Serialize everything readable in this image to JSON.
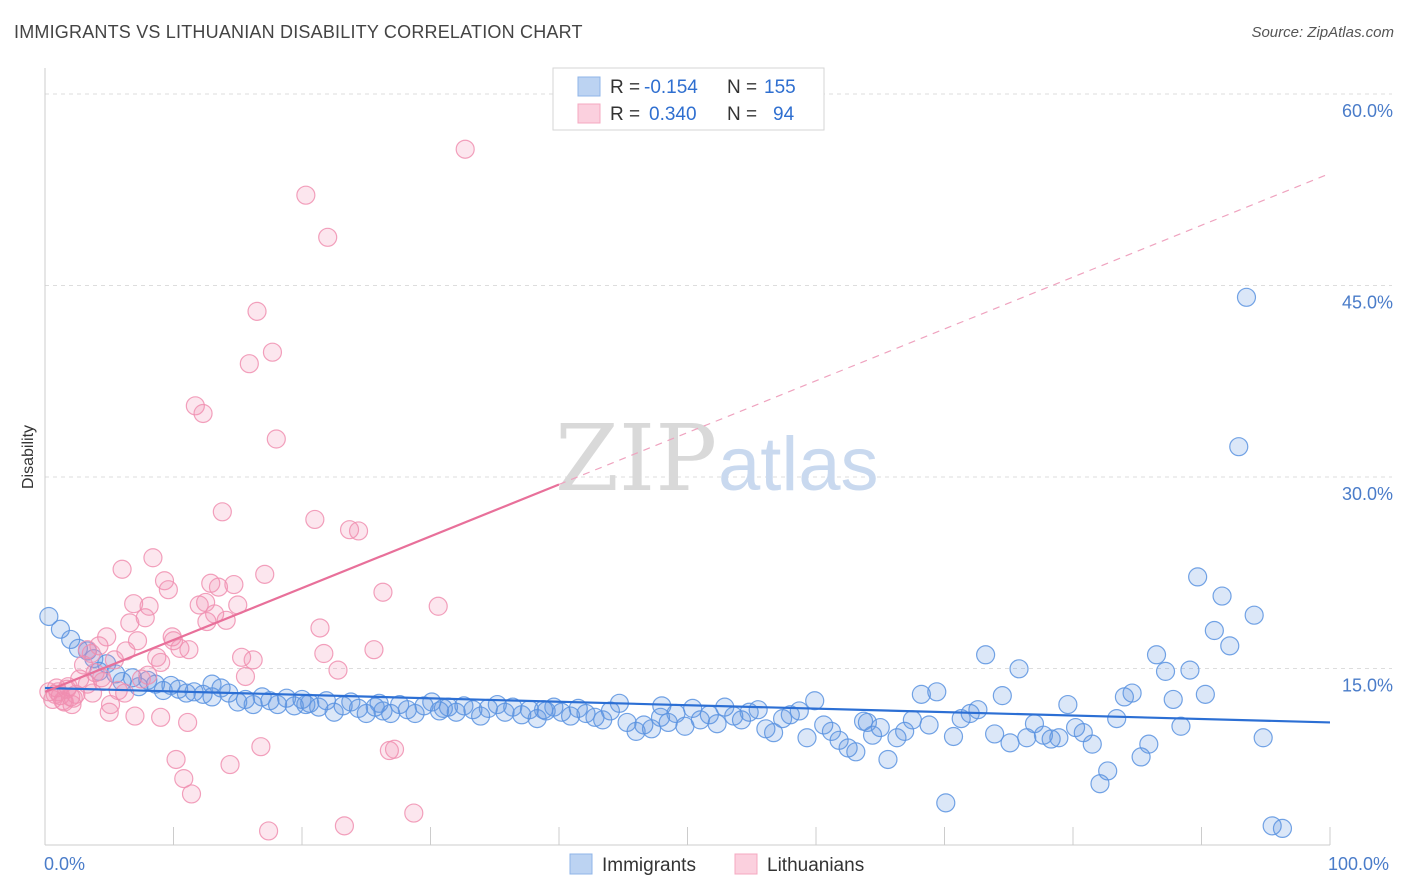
{
  "title": "IMMIGRANTS VS LITHUANIAN DISABILITY CORRELATION CHART",
  "source": "Source: ZipAtlas.com",
  "watermark": {
    "zip": "ZIP",
    "atlas": "atlas"
  },
  "chart_data": {
    "type": "scatter",
    "xlabel": "",
    "ylabel": "Disability",
    "xlim": [
      0,
      100
    ],
    "ylim": [
      0,
      60
    ],
    "x_tick_labels": [
      "0.0%",
      "100.0%"
    ],
    "y_ticks": [
      15,
      30,
      45,
      60
    ],
    "y_tick_labels": [
      "15.0%",
      "30.0%",
      "45.0%",
      "60.0%"
    ],
    "grid": "horizontal dashed",
    "legend_position": "top-center",
    "legend": [
      {
        "r_label": "R =",
        "r_value": "-0.154",
        "n_label": "N =",
        "n_value": "155",
        "color": "#8fb4e8"
      },
      {
        "r_label": "R =",
        "r_value": "0.340",
        "n_label": "N =",
        "n_value": "94",
        "color": "#f5a8c0"
      }
    ],
    "series": [
      {
        "name": "Immigrants",
        "color": "#5b93e0",
        "trend": {
          "x0": 0,
          "y0": 12.3,
          "x1": 100,
          "y1": 9.6,
          "dashed_from": null
        },
        "points": [
          [
            0.3,
            17.9
          ],
          [
            1.2,
            16.9
          ],
          [
            2.0,
            16.1
          ],
          [
            2.6,
            15.4
          ],
          [
            3.3,
            15.2
          ],
          [
            3.8,
            14.6
          ],
          [
            4.2,
            13.6
          ],
          [
            4.8,
            14.2
          ],
          [
            5.5,
            13.4
          ],
          [
            6.0,
            12.8
          ],
          [
            6.8,
            13.1
          ],
          [
            7.3,
            12.4
          ],
          [
            8.0,
            12.9
          ],
          [
            8.6,
            12.6
          ],
          [
            9.2,
            12.1
          ],
          [
            9.8,
            12.5
          ],
          [
            10.4,
            12.2
          ],
          [
            11.0,
            11.9
          ],
          [
            11.6,
            12.0
          ],
          [
            12.3,
            11.8
          ],
          [
            13.0,
            11.6
          ],
          [
            13.7,
            12.3
          ],
          [
            14.3,
            11.9
          ],
          [
            15.0,
            11.2
          ],
          [
            15.6,
            11.4
          ],
          [
            16.2,
            11.0
          ],
          [
            16.9,
            11.6
          ],
          [
            17.5,
            11.3
          ],
          [
            18.1,
            11.0
          ],
          [
            18.8,
            11.5
          ],
          [
            19.4,
            10.9
          ],
          [
            20.0,
            11.4
          ],
          [
            20.6,
            11.1
          ],
          [
            21.3,
            10.8
          ],
          [
            21.9,
            11.3
          ],
          [
            22.5,
            10.4
          ],
          [
            23.2,
            10.9
          ],
          [
            23.8,
            11.2
          ],
          [
            24.4,
            10.7
          ],
          [
            25.0,
            10.3
          ],
          [
            25.7,
            10.8
          ],
          [
            26.3,
            10.5
          ],
          [
            26.9,
            10.3
          ],
          [
            27.6,
            11.0
          ],
          [
            28.2,
            10.6
          ],
          [
            28.8,
            10.3
          ],
          [
            29.5,
            10.9
          ],
          [
            30.1,
            11.2
          ],
          [
            30.7,
            10.5
          ],
          [
            31.4,
            10.8
          ],
          [
            32.0,
            10.4
          ],
          [
            32.6,
            10.9
          ],
          [
            33.3,
            10.6
          ],
          [
            33.9,
            10.1
          ],
          [
            34.5,
            10.7
          ],
          [
            35.2,
            11.0
          ],
          [
            35.8,
            10.4
          ],
          [
            36.4,
            10.8
          ],
          [
            37.1,
            10.2
          ],
          [
            37.7,
            10.6
          ],
          [
            38.3,
            9.9
          ],
          [
            39.0,
            10.5
          ],
          [
            39.6,
            10.8
          ],
          [
            40.2,
            10.4
          ],
          [
            40.9,
            10.1
          ],
          [
            41.5,
            10.7
          ],
          [
            42.1,
            10.3
          ],
          [
            42.8,
            10.0
          ],
          [
            43.4,
            9.8
          ],
          [
            44.0,
            10.5
          ],
          [
            44.7,
            11.1
          ],
          [
            45.3,
            9.6
          ],
          [
            46.0,
            8.9
          ],
          [
            46.6,
            9.4
          ],
          [
            47.2,
            9.1
          ],
          [
            47.9,
            10.0
          ],
          [
            48.5,
            9.6
          ],
          [
            49.1,
            10.3
          ],
          [
            49.8,
            9.3
          ],
          [
            50.4,
            10.7
          ],
          [
            51.0,
            9.8
          ],
          [
            51.7,
            10.2
          ],
          [
            52.3,
            9.5
          ],
          [
            52.9,
            10.8
          ],
          [
            53.6,
            10.1
          ],
          [
            54.2,
            9.8
          ],
          [
            54.8,
            10.4
          ],
          [
            55.5,
            10.6
          ],
          [
            56.1,
            9.1
          ],
          [
            56.7,
            8.8
          ],
          [
            57.4,
            9.9
          ],
          [
            58.0,
            10.2
          ],
          [
            58.7,
            10.5
          ],
          [
            59.3,
            8.4
          ],
          [
            59.9,
            11.3
          ],
          [
            60.6,
            9.4
          ],
          [
            61.2,
            8.9
          ],
          [
            61.8,
            8.2
          ],
          [
            62.5,
            7.6
          ],
          [
            63.1,
            7.3
          ],
          [
            63.7,
            9.7
          ],
          [
            64.4,
            8.6
          ],
          [
            65.0,
            9.2
          ],
          [
            65.6,
            6.7
          ],
          [
            66.3,
            8.4
          ],
          [
            66.9,
            8.9
          ],
          [
            67.5,
            9.8
          ],
          [
            68.2,
            11.8
          ],
          [
            68.8,
            9.4
          ],
          [
            69.4,
            12.0
          ],
          [
            70.1,
            3.3
          ],
          [
            70.7,
            8.5
          ],
          [
            71.3,
            9.9
          ],
          [
            72.0,
            10.3
          ],
          [
            72.6,
            10.6
          ],
          [
            73.2,
            14.9
          ],
          [
            73.9,
            8.7
          ],
          [
            74.5,
            11.7
          ],
          [
            75.1,
            8.0
          ],
          [
            75.8,
            13.8
          ],
          [
            76.4,
            8.4
          ],
          [
            77.0,
            9.5
          ],
          [
            77.7,
            8.6
          ],
          [
            78.3,
            8.3
          ],
          [
            78.9,
            8.4
          ],
          [
            79.6,
            11.0
          ],
          [
            80.2,
            9.2
          ],
          [
            80.8,
            8.8
          ],
          [
            81.5,
            7.9
          ],
          [
            82.1,
            4.8
          ],
          [
            82.7,
            5.8
          ],
          [
            83.4,
            9.9
          ],
          [
            84.0,
            11.6
          ],
          [
            84.6,
            11.9
          ],
          [
            85.3,
            6.9
          ],
          [
            85.9,
            7.9
          ],
          [
            86.5,
            14.9
          ],
          [
            87.2,
            13.6
          ],
          [
            87.8,
            11.4
          ],
          [
            88.4,
            9.3
          ],
          [
            89.1,
            13.7
          ],
          [
            89.7,
            21.0
          ],
          [
            90.3,
            11.8
          ],
          [
            91.0,
            16.8
          ],
          [
            91.6,
            19.5
          ],
          [
            92.2,
            15.6
          ],
          [
            92.9,
            31.2
          ],
          [
            93.5,
            42.9
          ],
          [
            94.1,
            18.0
          ],
          [
            94.8,
            8.4
          ],
          [
            95.5,
            1.5
          ],
          [
            96.3,
            1.3
          ],
          [
            48.0,
            10.9
          ],
          [
            20.3,
            11.0
          ],
          [
            13.0,
            12.6
          ],
          [
            38.8,
            10.6
          ],
          [
            26.0,
            11.1
          ],
          [
            31.0,
            10.7
          ],
          [
            64.0,
            9.6
          ]
        ]
      },
      {
        "name": "Lithuanians",
        "color": "#f08fb0",
        "trend": {
          "x0": 0,
          "y0": 12.0,
          "x1": 100,
          "y1": 52.6,
          "dashed_from": 40
        },
        "points": [
          [
            0.3,
            12.0
          ],
          [
            0.6,
            11.4
          ],
          [
            0.9,
            12.3
          ],
          [
            1.2,
            11.7
          ],
          [
            1.5,
            11.2
          ],
          [
            1.8,
            12.4
          ],
          [
            2.1,
            11.0
          ],
          [
            2.4,
            11.8
          ],
          [
            2.7,
            13.0
          ],
          [
            3.0,
            14.1
          ],
          [
            3.3,
            12.6
          ],
          [
            3.6,
            15.0
          ],
          [
            3.9,
            13.5
          ],
          [
            4.2,
            15.6
          ],
          [
            4.5,
            12.8
          ],
          [
            4.8,
            16.3
          ],
          [
            5.1,
            11.0
          ],
          [
            5.4,
            14.5
          ],
          [
            5.7,
            12.1
          ],
          [
            6.0,
            21.6
          ],
          [
            6.3,
            15.2
          ],
          [
            6.6,
            17.4
          ],
          [
            6.9,
            18.9
          ],
          [
            7.2,
            16.0
          ],
          [
            7.5,
            13.0
          ],
          [
            7.8,
            17.8
          ],
          [
            8.1,
            18.7
          ],
          [
            8.4,
            22.5
          ],
          [
            8.7,
            14.7
          ],
          [
            9.0,
            10.0
          ],
          [
            9.3,
            20.7
          ],
          [
            9.6,
            20.0
          ],
          [
            9.9,
            16.3
          ],
          [
            10.2,
            6.7
          ],
          [
            10.5,
            15.4
          ],
          [
            10.8,
            5.2
          ],
          [
            11.1,
            9.6
          ],
          [
            11.4,
            4.0
          ],
          [
            11.7,
            34.4
          ],
          [
            12.0,
            18.8
          ],
          [
            12.3,
            33.8
          ],
          [
            12.6,
            17.5
          ],
          [
            12.9,
            20.5
          ],
          [
            13.2,
            18.1
          ],
          [
            13.5,
            20.2
          ],
          [
            13.8,
            26.1
          ],
          [
            14.1,
            17.6
          ],
          [
            14.4,
            6.3
          ],
          [
            14.7,
            20.4
          ],
          [
            15.0,
            18.8
          ],
          [
            15.3,
            14.7
          ],
          [
            15.6,
            13.2
          ],
          [
            15.9,
            37.7
          ],
          [
            16.2,
            14.5
          ],
          [
            16.5,
            41.8
          ],
          [
            16.8,
            7.7
          ],
          [
            17.1,
            21.2
          ],
          [
            17.4,
            1.1
          ],
          [
            17.7,
            38.6
          ],
          [
            18.0,
            31.8
          ],
          [
            20.3,
            50.9
          ],
          [
            21.0,
            25.5
          ],
          [
            21.4,
            17.0
          ],
          [
            21.7,
            15.0
          ],
          [
            22.0,
            47.6
          ],
          [
            22.8,
            13.7
          ],
          [
            23.3,
            1.5
          ],
          [
            23.7,
            24.7
          ],
          [
            24.4,
            24.6
          ],
          [
            25.6,
            15.3
          ],
          [
            26.3,
            19.8
          ],
          [
            26.8,
            7.4
          ],
          [
            27.2,
            7.5
          ],
          [
            28.7,
            2.5
          ],
          [
            30.6,
            18.7
          ],
          [
            32.7,
            54.5
          ],
          [
            1.0,
            12.0
          ],
          [
            1.4,
            11.3
          ],
          [
            2.0,
            11.6
          ],
          [
            0.8,
            11.8
          ],
          [
            3.3,
            15.3
          ],
          [
            5.0,
            10.4
          ],
          [
            6.2,
            11.9
          ],
          [
            7.0,
            10.1
          ],
          [
            8.0,
            13.3
          ],
          [
            9.0,
            14.3
          ],
          [
            10.0,
            16.0
          ],
          [
            11.2,
            15.3
          ],
          [
            12.5,
            19.0
          ],
          [
            4.4,
            13.1
          ],
          [
            2.2,
            11.5
          ],
          [
            1.7,
            12.2
          ],
          [
            3.7,
            11.9
          ]
        ]
      }
    ]
  },
  "bottom_legend": [
    {
      "label": "Immigrants",
      "color": "#8fb4e8"
    },
    {
      "label": "Lithuanians",
      "color": "#f5a8c0"
    }
  ]
}
